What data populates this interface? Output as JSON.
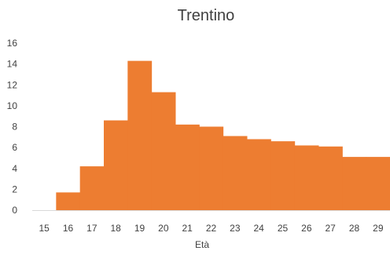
{
  "chart_data": {
    "type": "bar",
    "title": "Trentino",
    "xlabel": "Età",
    "ylabel": "",
    "categories": [
      "15",
      "16",
      "17",
      "18",
      "19",
      "20",
      "21",
      "22",
      "23",
      "24",
      "25",
      "26",
      "27",
      "28",
      "29"
    ],
    "values": [
      0,
      1.7,
      4.2,
      8.6,
      14.3,
      11.3,
      8.2,
      8.0,
      7.1,
      6.8,
      6.6,
      6.2,
      6.1,
      5.1,
      5.1
    ],
    "yticks": [
      "0",
      "2",
      "4",
      "6",
      "8",
      "10",
      "12",
      "14",
      "16"
    ],
    "ylim": [
      0,
      16
    ],
    "grid": false,
    "legend": "none",
    "colors": {
      "bar": "#ed7d31",
      "axis": "#d9d9d9",
      "text": "#404040"
    }
  }
}
